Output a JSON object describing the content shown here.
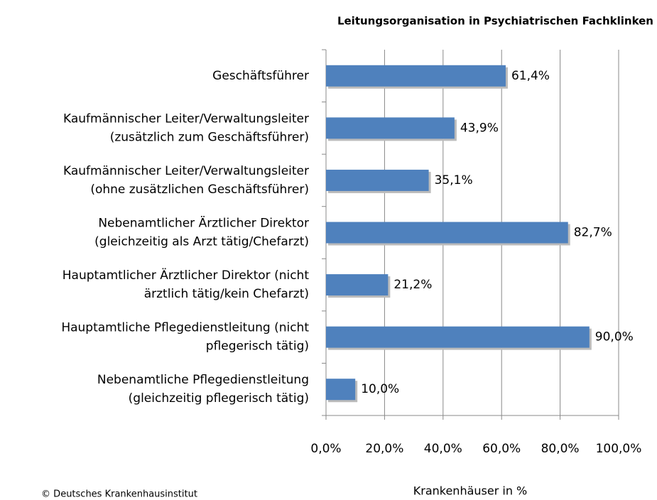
{
  "chart_data": {
    "type": "bar",
    "orientation": "horizontal",
    "title": "Leitungsorganisation  in Psychiatrischen  Fachklinken",
    "categories": [
      [
        "Geschäftsführer"
      ],
      [
        "Kaufmännischer Leiter/Verwaltungsleiter",
        "(zusätzlich zum Geschäftsführer)"
      ],
      [
        "Kaufmännischer Leiter/Verwaltungsleiter",
        "(ohne zusätzlichen Geschäftsführer)"
      ],
      [
        "Nebenamtlicher Ärztlicher Direktor",
        "(gleichzeitig als Arzt tätig/Chefarzt)"
      ],
      [
        "Hauptamtlicher Ärztlicher Direktor (nicht",
        "ärztlich tätig/kein Chefarzt)"
      ],
      [
        "Hauptamtliche Pflegedienstleitung (nicht",
        "pflegerisch tätig)"
      ],
      [
        "Nebenamtliche Pflegedienstleitung",
        "(gleichzeitig pflegerisch tätig)"
      ]
    ],
    "values": [
      61.4,
      43.9,
      35.1,
      82.7,
      21.2,
      90.0,
      10.0
    ],
    "value_labels": [
      "61,4%",
      "43,9%",
      "35,1%",
      "82,7%",
      "21,2%",
      "90,0%",
      "10,0%"
    ],
    "color": "#4f81bd",
    "xlim": [
      0,
      100
    ],
    "xticks": [
      {
        "value": 0,
        "label": "0,0%"
      },
      {
        "value": 20,
        "label": "20,0%"
      },
      {
        "value": 40,
        "label": "40,0%"
      },
      {
        "value": 60,
        "label": "60,0%"
      },
      {
        "value": 80,
        "label": "80,0%"
      },
      {
        "value": 100,
        "label": "100,0%"
      }
    ],
    "xlabel": "Krankenhäuser in %",
    "grid": true,
    "source": "© Deutsches Krankenhausinstitut"
  }
}
